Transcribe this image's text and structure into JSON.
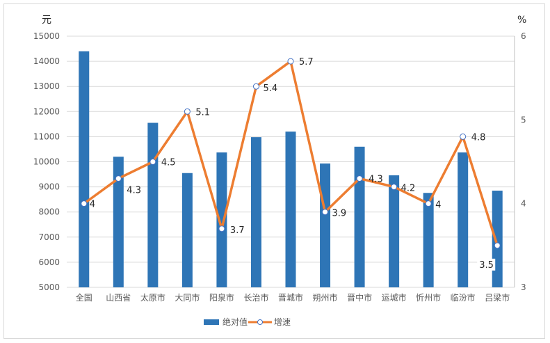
{
  "chart_data": {
    "type": "bar",
    "categories": [
      "全国",
      "山西省",
      "太原市",
      "大同市",
      "阳泉市",
      "长治市",
      "晋城市",
      "朔州市",
      "晋中市",
      "运城市",
      "忻州市",
      "临汾市",
      "吕梁市"
    ],
    "series": [
      {
        "name": "绝对值",
        "type": "bar",
        "axis": "left",
        "values": [
          14400,
          10200,
          11550,
          9550,
          10370,
          10980,
          11200,
          9930,
          10600,
          9460,
          8760,
          10370,
          8850
        ]
      },
      {
        "name": "增速",
        "type": "line",
        "axis": "right",
        "values": [
          4,
          4.3,
          4.5,
          5.1,
          3.7,
          5.4,
          5.7,
          3.9,
          4.3,
          4.2,
          4,
          4.8,
          3.5
        ],
        "labels": [
          "4",
          "4.3",
          "4.5",
          "5.1",
          "3.7",
          "5.4",
          "5.7",
          "3.9",
          "4.3",
          "4.2",
          "4",
          "4.8",
          "3.5"
        ]
      }
    ],
    "y_left": {
      "unit": "元",
      "min": 5000,
      "max": 15000,
      "step": 1000
    },
    "y_right": {
      "unit": "%",
      "min": 3,
      "max": 6,
      "step": 1
    },
    "grid": true,
    "legend_position": "bottom-left",
    "colors": {
      "bar": "#2e75b6",
      "line": "#ed7d31",
      "marker_fill": "#ffffff",
      "grid": "#d9d9d9",
      "text": "#595959"
    }
  }
}
